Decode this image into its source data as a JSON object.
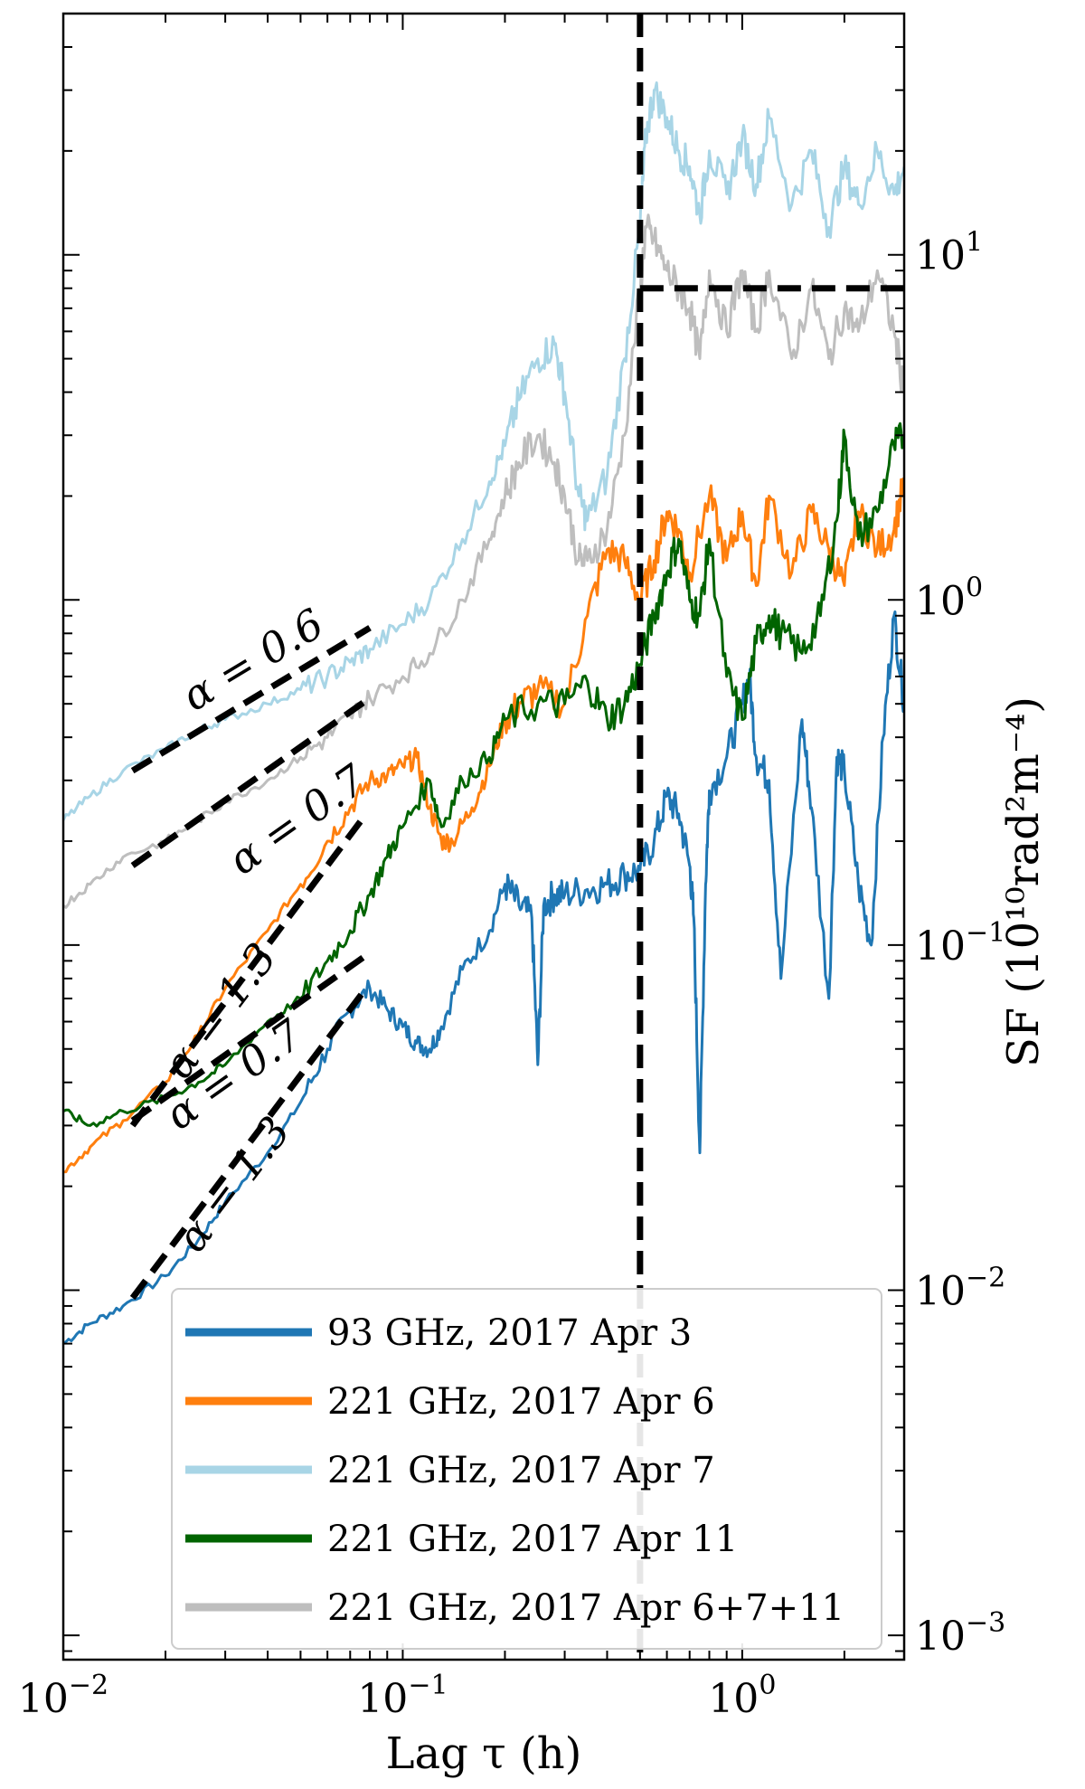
{
  "chart_data": {
    "type": "line",
    "title": "",
    "xlabel": "Lag τ (h)",
    "ylabel": "SF (10¹⁰rad²m⁻⁴)",
    "xscale": "log",
    "yscale": "log",
    "xlim": [
      0.01,
      3.0
    ],
    "ylim": [
      0.00085,
      50
    ],
    "grid": false,
    "legend_position": "lower-right",
    "x_ticks": [
      {
        "value": 0.01,
        "base": "10",
        "exp": "−2"
      },
      {
        "value": 0.1,
        "base": "10",
        "exp": "−1"
      },
      {
        "value": 1,
        "base": "10",
        "exp": "0"
      }
    ],
    "y_ticks": [
      {
        "value": 0.001,
        "base": "10",
        "exp": "−3"
      },
      {
        "value": 0.01,
        "base": "10",
        "exp": "−2"
      },
      {
        "value": 0.1,
        "base": "10",
        "exp": "−1"
      },
      {
        "value": 1,
        "base": "10",
        "exp": "0"
      },
      {
        "value": 10,
        "base": "10",
        "exp": "1"
      }
    ],
    "series": [
      {
        "name": "93 GHz, 2017 Apr 3",
        "color": "#1f77b4",
        "x": [
          0.01,
          0.012,
          0.015,
          0.02,
          0.025,
          0.03,
          0.04,
          0.05,
          0.06,
          0.07,
          0.08,
          0.09,
          0.1,
          0.11,
          0.12,
          0.13,
          0.15,
          0.18,
          0.2,
          0.22,
          0.24,
          0.25,
          0.26,
          0.28,
          0.3,
          0.35,
          0.4,
          0.45,
          0.5,
          0.55,
          0.6,
          0.65,
          0.7,
          0.72,
          0.75,
          0.78,
          0.8,
          0.9,
          1.0,
          1.05,
          1.1,
          1.2,
          1.3,
          1.5,
          1.6,
          1.8,
          1.9,
          2.0,
          2.2,
          2.4,
          2.6,
          2.8,
          3.0
        ],
        "y": [
          0.007,
          0.008,
          0.009,
          0.011,
          0.014,
          0.018,
          0.025,
          0.035,
          0.05,
          0.065,
          0.075,
          0.065,
          0.058,
          0.052,
          0.05,
          0.058,
          0.085,
          0.11,
          0.15,
          0.13,
          0.12,
          0.045,
          0.13,
          0.14,
          0.14,
          0.145,
          0.15,
          0.16,
          0.165,
          0.2,
          0.27,
          0.24,
          0.17,
          0.12,
          0.025,
          0.15,
          0.28,
          0.35,
          0.5,
          0.6,
          0.35,
          0.3,
          0.08,
          0.45,
          0.25,
          0.07,
          0.35,
          0.32,
          0.15,
          0.1,
          0.4,
          0.9,
          0.5
        ]
      },
      {
        "name": "221 GHz, 2017 Apr 6",
        "color": "#ff7f0e",
        "x": [
          0.01,
          0.012,
          0.015,
          0.02,
          0.025,
          0.03,
          0.04,
          0.05,
          0.06,
          0.07,
          0.08,
          0.09,
          0.1,
          0.11,
          0.12,
          0.13,
          0.14,
          0.16,
          0.18,
          0.2,
          0.22,
          0.25,
          0.3,
          0.35,
          0.4,
          0.45,
          0.5,
          0.55,
          0.6,
          0.65,
          0.7,
          0.8,
          0.9,
          1.0,
          1.1,
          1.2,
          1.4,
          1.6,
          1.8,
          2.0,
          2.2,
          2.5,
          2.8,
          3.0
        ],
        "y": [
          0.022,
          0.026,
          0.031,
          0.04,
          0.055,
          0.075,
          0.11,
          0.15,
          0.2,
          0.25,
          0.3,
          0.31,
          0.33,
          0.35,
          0.25,
          0.2,
          0.2,
          0.25,
          0.33,
          0.45,
          0.5,
          0.55,
          0.5,
          0.9,
          1.4,
          1.3,
          1.0,
          1.3,
          1.8,
          1.6,
          1.2,
          2.0,
          1.3,
          1.8,
          1.1,
          2.0,
          1.2,
          1.8,
          1.4,
          1.1,
          1.8,
          1.4,
          1.6,
          2.2
        ]
      },
      {
        "name": "221 GHz, 2017 Apr 7",
        "color": "#a8d5e6",
        "x": [
          0.01,
          0.012,
          0.015,
          0.02,
          0.025,
          0.03,
          0.04,
          0.05,
          0.06,
          0.07,
          0.08,
          0.1,
          0.12,
          0.15,
          0.18,
          0.2,
          0.22,
          0.25,
          0.28,
          0.3,
          0.33,
          0.35,
          0.4,
          0.45,
          0.5,
          0.52,
          0.55,
          0.6,
          0.65,
          0.7,
          0.75,
          0.8,
          0.9,
          1.0,
          1.1,
          1.2,
          1.4,
          1.6,
          1.8,
          2.0,
          2.2,
          2.5,
          2.8,
          3.0
        ],
        "y": [
          0.23,
          0.27,
          0.32,
          0.37,
          0.42,
          0.45,
          0.5,
          0.55,
          0.6,
          0.66,
          0.72,
          0.85,
          1.0,
          1.5,
          2.2,
          2.8,
          3.8,
          5.0,
          5.5,
          4.0,
          2.0,
          1.7,
          2.3,
          5.0,
          12.0,
          22.0,
          30.0,
          25.0,
          20.0,
          18.0,
          13.0,
          20.0,
          15.0,
          22.0,
          16.0,
          25.0,
          14.0,
          20.0,
          12.0,
          18.0,
          14.0,
          20.0,
          15.0,
          18.0
        ]
      },
      {
        "name": "221 GHz, 2017 Apr 11",
        "color": "#006400",
        "x": [
          0.01,
          0.012,
          0.015,
          0.02,
          0.025,
          0.03,
          0.04,
          0.05,
          0.06,
          0.07,
          0.08,
          0.09,
          0.1,
          0.12,
          0.13,
          0.15,
          0.18,
          0.2,
          0.25,
          0.3,
          0.35,
          0.4,
          0.45,
          0.5,
          0.55,
          0.6,
          0.65,
          0.7,
          0.75,
          0.8,
          0.9,
          1.0,
          1.1,
          1.2,
          1.3,
          1.5,
          1.7,
          1.9,
          2.0,
          2.2,
          2.5,
          2.8,
          3.0
        ],
        "y": [
          0.033,
          0.03,
          0.033,
          0.036,
          0.04,
          0.045,
          0.06,
          0.07,
          0.09,
          0.11,
          0.14,
          0.18,
          0.22,
          0.3,
          0.22,
          0.3,
          0.35,
          0.45,
          0.5,
          0.5,
          0.58,
          0.45,
          0.5,
          0.65,
          0.9,
          1.2,
          1.5,
          1.0,
          0.9,
          1.5,
          0.6,
          0.45,
          0.75,
          0.9,
          0.8,
          0.7,
          0.9,
          1.7,
          3.0,
          1.5,
          1.8,
          2.8,
          3.0
        ]
      },
      {
        "name": "221 GHz, 2017 Apr 6+7+11",
        "color": "#bebebe",
        "x": [
          0.01,
          0.012,
          0.015,
          0.02,
          0.025,
          0.03,
          0.04,
          0.05,
          0.06,
          0.07,
          0.08,
          0.1,
          0.12,
          0.15,
          0.18,
          0.2,
          0.22,
          0.25,
          0.28,
          0.3,
          0.33,
          0.35,
          0.4,
          0.45,
          0.5,
          0.52,
          0.55,
          0.6,
          0.65,
          0.7,
          0.75,
          0.8,
          0.9,
          1.0,
          1.1,
          1.2,
          1.4,
          1.6,
          1.8,
          2.0,
          2.2,
          2.5,
          2.8,
          3.0
        ],
        "y": [
          0.13,
          0.15,
          0.18,
          0.2,
          0.23,
          0.26,
          0.3,
          0.35,
          0.4,
          0.46,
          0.52,
          0.6,
          0.7,
          1.0,
          1.5,
          2.0,
          2.5,
          3.0,
          2.5,
          2.0,
          1.3,
          1.3,
          1.6,
          3.0,
          8.0,
          12.0,
          11.0,
          9.0,
          8.0,
          7.0,
          5.0,
          9.0,
          6.0,
          9.0,
          6.0,
          9.0,
          5.0,
          8.0,
          5.0,
          7.0,
          6.0,
          9.0,
          6.0,
          4.0
        ]
      }
    ],
    "reference_lines": [
      {
        "label": "α = 0.6",
        "x": [
          0.016,
          0.08
        ],
        "y": [
          0.32,
          0.83
        ]
      },
      {
        "label": "α = 0.7",
        "x": [
          0.016,
          0.08
        ],
        "y": [
          0.17,
          0.52
        ]
      },
      {
        "label": "α = 1.3",
        "x": [
          0.016,
          0.078
        ],
        "y": [
          0.03,
          0.24
        ]
      },
      {
        "label": "α = 0.7",
        "x": [
          0.016,
          0.08
        ],
        "y": [
          0.031,
          0.095
        ]
      },
      {
        "label": "α = 1.3",
        "x": [
          0.016,
          0.078
        ],
        "y": [
          0.0095,
          0.075
        ]
      }
    ],
    "vertical_line": {
      "x": 0.5
    },
    "horizontal_line": {
      "y": 8.0,
      "xrange": [
        0.5,
        3.0
      ]
    }
  }
}
